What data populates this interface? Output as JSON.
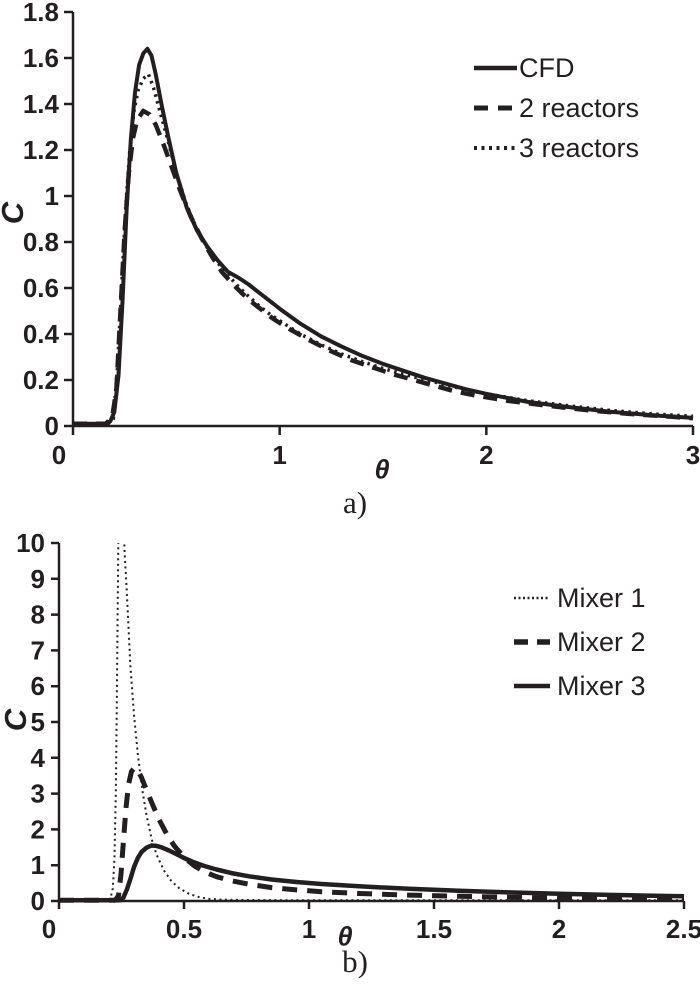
{
  "colors": {
    "ink": "#231f20",
    "background": "#ffffff"
  },
  "chart_data": [
    {
      "id": "a",
      "type": "line",
      "caption": "a)",
      "xlabel": "θ",
      "ylabel": "C",
      "xlim": [
        0,
        3
      ],
      "ylim": [
        0,
        1.8
      ],
      "x_ticks": [
        0,
        1,
        2,
        3
      ],
      "x_tick_labels": [
        "0",
        "1",
        "2",
        "3"
      ],
      "y_ticks": [
        0,
        0.2,
        0.4,
        0.6,
        0.8,
        1,
        1.2,
        1.4,
        1.6,
        1.8
      ],
      "y_tick_labels": [
        "0",
        "0.2",
        "0.4",
        "0.6",
        "0.8",
        "1",
        "1.2",
        "1.4",
        "1.6",
        "1.8"
      ],
      "grid": false,
      "legend_position": "upper right",
      "legend": [
        {
          "label": "CFD",
          "style": "solid"
        },
        {
          "label": "2 reactors",
          "style": "dashed"
        },
        {
          "label": "3 reactors",
          "style": "dotted"
        }
      ],
      "series": [
        {
          "name": "3 reactors",
          "style": "dotted",
          "points": [
            [
              0,
              0.01
            ],
            [
              0.17,
              0.01
            ],
            [
              0.195,
              0.03
            ],
            [
              0.215,
              0.25
            ],
            [
              0.235,
              0.6
            ],
            [
              0.255,
              0.95
            ],
            [
              0.275,
              1.2
            ],
            [
              0.295,
              1.37
            ],
            [
              0.315,
              1.46
            ],
            [
              0.34,
              1.51
            ],
            [
              0.365,
              1.53
            ],
            [
              0.39,
              1.47
            ],
            [
              0.42,
              1.37
            ],
            [
              0.46,
              1.24
            ],
            [
              0.5,
              1.1
            ],
            [
              0.55,
              0.96
            ],
            [
              0.6,
              0.855
            ],
            [
              0.65,
              0.775
            ],
            [
              0.7,
              0.71
            ],
            [
              0.75,
              0.655
            ],
            [
              0.8,
              0.607
            ],
            [
              0.85,
              0.563
            ],
            [
              0.9,
              0.523
            ],
            [
              0.95,
              0.488
            ],
            [
              1.0,
              0.458
            ],
            [
              1.1,
              0.4
            ],
            [
              1.2,
              0.353
            ],
            [
              1.3,
              0.313
            ],
            [
              1.4,
              0.28
            ],
            [
              1.5,
              0.25
            ],
            [
              1.6,
              0.225
            ],
            [
              1.7,
              0.202
            ],
            [
              1.8,
              0.18
            ],
            [
              1.9,
              0.158
            ],
            [
              2.0,
              0.14
            ],
            [
              2.2,
              0.11
            ],
            [
              2.4,
              0.088
            ],
            [
              2.6,
              0.068
            ],
            [
              2.8,
              0.053
            ],
            [
              3.0,
              0.042
            ]
          ]
        },
        {
          "name": "2 reactors",
          "style": "dashed",
          "points": [
            [
              0,
              0.01
            ],
            [
              0.16,
              0.01
            ],
            [
              0.19,
              0.04
            ],
            [
              0.21,
              0.16
            ],
            [
              0.23,
              0.5
            ],
            [
              0.25,
              0.85
            ],
            [
              0.27,
              1.1
            ],
            [
              0.29,
              1.25
            ],
            [
              0.31,
              1.33
            ],
            [
              0.34,
              1.37
            ],
            [
              0.37,
              1.355
            ],
            [
              0.4,
              1.31
            ],
            [
              0.44,
              1.22
            ],
            [
              0.48,
              1.12
            ],
            [
              0.52,
              1.02
            ],
            [
              0.57,
              0.91
            ],
            [
              0.62,
              0.82
            ],
            [
              0.67,
              0.74
            ],
            [
              0.72,
              0.67
            ],
            [
              0.77,
              0.62
            ],
            [
              0.82,
              0.575
            ],
            [
              0.87,
              0.535
            ],
            [
              0.92,
              0.5
            ],
            [
              0.97,
              0.465
            ],
            [
              1.05,
              0.42
            ],
            [
              1.15,
              0.37
            ],
            [
              1.25,
              0.325
            ],
            [
              1.35,
              0.285
            ],
            [
              1.45,
              0.255
            ],
            [
              1.55,
              0.225
            ],
            [
              1.65,
              0.2
            ],
            [
              1.75,
              0.175
            ],
            [
              1.85,
              0.15
            ],
            [
              1.95,
              0.132
            ],
            [
              2.1,
              0.11
            ],
            [
              2.3,
              0.088
            ],
            [
              2.5,
              0.068
            ],
            [
              2.7,
              0.052
            ],
            [
              2.9,
              0.04
            ],
            [
              3.0,
              0.034
            ]
          ]
        },
        {
          "name": "CFD",
          "style": "solid",
          "points": [
            [
              0,
              0.01
            ],
            [
              0.15,
              0.01
            ],
            [
              0.18,
              0.02
            ],
            [
              0.2,
              0.06
            ],
            [
              0.22,
              0.22
            ],
            [
              0.24,
              0.55
            ],
            [
              0.26,
              0.95
            ],
            [
              0.28,
              1.25
            ],
            [
              0.3,
              1.45
            ],
            [
              0.32,
              1.57
            ],
            [
              0.34,
              1.62
            ],
            [
              0.36,
              1.64
            ],
            [
              0.38,
              1.61
            ],
            [
              0.4,
              1.53
            ],
            [
              0.43,
              1.39
            ],
            [
              0.46,
              1.26
            ],
            [
              0.5,
              1.1
            ],
            [
              0.55,
              0.95
            ],
            [
              0.6,
              0.85
            ],
            [
              0.65,
              0.78
            ],
            [
              0.7,
              0.72
            ],
            [
              0.75,
              0.67
            ],
            [
              0.8,
              0.645
            ],
            [
              0.85,
              0.615
            ],
            [
              0.9,
              0.58
            ],
            [
              0.95,
              0.545
            ],
            [
              1.0,
              0.51
            ],
            [
              1.1,
              0.445
            ],
            [
              1.2,
              0.39
            ],
            [
              1.3,
              0.345
            ],
            [
              1.4,
              0.305
            ],
            [
              1.5,
              0.27
            ],
            [
              1.6,
              0.24
            ],
            [
              1.7,
              0.21
            ],
            [
              1.8,
              0.185
            ],
            [
              1.9,
              0.16
            ],
            [
              2.0,
              0.14
            ],
            [
              2.2,
              0.105
            ],
            [
              2.4,
              0.082
            ],
            [
              2.6,
              0.062
            ],
            [
              2.8,
              0.047
            ],
            [
              3.0,
              0.035
            ]
          ]
        }
      ]
    },
    {
      "id": "b",
      "type": "line",
      "caption": "b)",
      "xlabel": "θ",
      "ylabel": "C",
      "xlim": [
        0,
        2.5
      ],
      "ylim": [
        0,
        10
      ],
      "x_ticks": [
        0,
        0.5,
        1,
        1.5,
        2,
        2.5
      ],
      "x_tick_labels": [
        "0",
        "0.5",
        "1",
        "1.5",
        "2",
        "2.5"
      ],
      "y_ticks": [
        0,
        1,
        2,
        3,
        4,
        5,
        6,
        7,
        8,
        9,
        10
      ],
      "y_tick_labels": [
        "0",
        "1",
        "2",
        "3",
        "4",
        "5",
        "6",
        "7",
        "8",
        "9",
        "10"
      ],
      "grid": false,
      "legend_position": "upper right",
      "legend": [
        {
          "label": "Mixer 1",
          "style": "fine-dotted"
        },
        {
          "label": "Mixer 2",
          "style": "heavy-dashed"
        },
        {
          "label": "Mixer 3",
          "style": "heavy-solid"
        }
      ],
      "series": [
        {
          "name": "Mixer 1",
          "style": "fine-dotted",
          "points": [
            [
              0,
              0.02
            ],
            [
              0.19,
              0.02
            ],
            [
              0.205,
              0.06
            ],
            [
              0.215,
              0.35
            ],
            [
              0.222,
              1.2
            ],
            [
              0.227,
              3.0
            ],
            [
              0.231,
              5.5
            ],
            [
              0.235,
              8.5
            ],
            [
              0.239,
              11.5
            ],
            [
              0.245,
              13.5
            ],
            [
              0.252,
              13.0
            ],
            [
              0.256,
              11.5
            ],
            [
              0.262,
              9.8
            ],
            [
              0.27,
              8.8
            ],
            [
              0.285,
              6.6
            ],
            [
              0.3,
              5.2
            ],
            [
              0.315,
              4.1
            ],
            [
              0.333,
              3.1
            ],
            [
              0.35,
              2.4
            ],
            [
              0.37,
              1.75
            ],
            [
              0.39,
              1.3
            ],
            [
              0.42,
              0.85
            ],
            [
              0.45,
              0.55
            ],
            [
              0.48,
              0.36
            ],
            [
              0.52,
              0.2
            ],
            [
              0.56,
              0.11
            ],
            [
              0.6,
              0.06
            ],
            [
              0.65,
              0.04
            ],
            [
              0.7,
              0.03
            ],
            [
              0.8,
              0.025
            ],
            [
              1.0,
              0.02
            ],
            [
              1.25,
              0.02
            ],
            [
              1.5,
              0.02
            ],
            [
              1.75,
              0.02
            ],
            [
              2.0,
              0.02
            ],
            [
              2.25,
              0.02
            ],
            [
              2.5,
              0.02
            ]
          ]
        },
        {
          "name": "Mixer 2",
          "style": "heavy-dashed",
          "points": [
            [
              0,
              0.02
            ],
            [
              0.225,
              0.02
            ],
            [
              0.238,
              0.15
            ],
            [
              0.248,
              0.75
            ],
            [
              0.258,
              1.7
            ],
            [
              0.268,
              2.6
            ],
            [
              0.278,
              3.25
            ],
            [
              0.29,
              3.62
            ],
            [
              0.302,
              3.72
            ],
            [
              0.315,
              3.65
            ],
            [
              0.33,
              3.45
            ],
            [
              0.35,
              3.1
            ],
            [
              0.375,
              2.68
            ],
            [
              0.4,
              2.28
            ],
            [
              0.43,
              1.88
            ],
            [
              0.46,
              1.55
            ],
            [
              0.5,
              1.22
            ],
            [
              0.54,
              0.99
            ],
            [
              0.58,
              0.82
            ],
            [
              0.63,
              0.68
            ],
            [
              0.69,
              0.565
            ],
            [
              0.76,
              0.47
            ],
            [
              0.85,
              0.375
            ],
            [
              0.95,
              0.31
            ],
            [
              1.05,
              0.26
            ],
            [
              1.2,
              0.21
            ],
            [
              1.4,
              0.165
            ],
            [
              1.6,
              0.13
            ],
            [
              1.8,
              0.105
            ],
            [
              2.0,
              0.085
            ],
            [
              2.2,
              0.067
            ],
            [
              2.35,
              0.056
            ],
            [
              2.5,
              0.046
            ]
          ]
        },
        {
          "name": "Mixer 3",
          "style": "heavy-solid",
          "points": [
            [
              0,
              0.02
            ],
            [
              0.245,
              0.02
            ],
            [
              0.258,
              0.1
            ],
            [
              0.272,
              0.33
            ],
            [
              0.287,
              0.65
            ],
            [
              0.3,
              0.95
            ],
            [
              0.315,
              1.2
            ],
            [
              0.33,
              1.37
            ],
            [
              0.35,
              1.49
            ],
            [
              0.37,
              1.55
            ],
            [
              0.39,
              1.54
            ],
            [
              0.41,
              1.5
            ],
            [
              0.44,
              1.41
            ],
            [
              0.47,
              1.31
            ],
            [
              0.5,
              1.2
            ],
            [
              0.54,
              1.08
            ],
            [
              0.58,
              0.98
            ],
            [
              0.63,
              0.88
            ],
            [
              0.69,
              0.78
            ],
            [
              0.76,
              0.69
            ],
            [
              0.85,
              0.6
            ],
            [
              0.95,
              0.53
            ],
            [
              1.05,
              0.475
            ],
            [
              1.2,
              0.41
            ],
            [
              1.4,
              0.34
            ],
            [
              1.6,
              0.285
            ],
            [
              1.8,
              0.24
            ],
            [
              2.0,
              0.2
            ],
            [
              2.2,
              0.17
            ],
            [
              2.35,
              0.15
            ],
            [
              2.5,
              0.13
            ]
          ]
        }
      ]
    }
  ]
}
